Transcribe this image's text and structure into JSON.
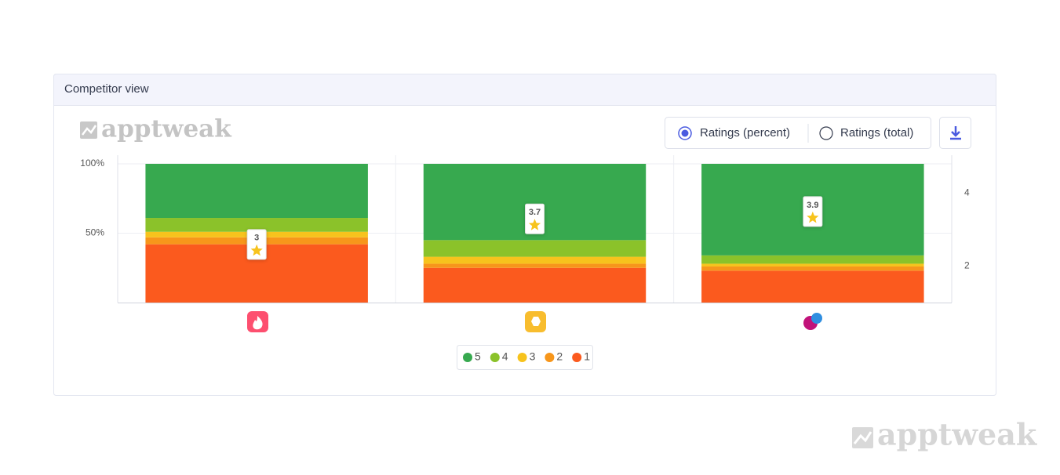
{
  "header": {
    "title": "Competitor view"
  },
  "logo": "apptweak",
  "controls": {
    "options": [
      "Ratings (percent)",
      "Ratings (total)"
    ],
    "selected": 0
  },
  "watermark": "apptweak",
  "chart_data": {
    "type": "stacked-bar",
    "categories": [
      null,
      null,
      null
    ],
    "series": [
      {
        "name": "5",
        "color": "#37a94f",
        "values": [
          39,
          55,
          66
        ]
      },
      {
        "name": "4",
        "color": "#8bc22a",
        "values": [
          10,
          12,
          6
        ]
      },
      {
        "name": "3",
        "color": "#f7c31d",
        "values": [
          4,
          5,
          2
        ]
      },
      {
        "name": "2",
        "color": "#f7961b",
        "values": [
          5,
          3,
          3
        ]
      },
      {
        "name": "1",
        "color": "#fb5a1e",
        "values": [
          42,
          25,
          23
        ]
      }
    ],
    "ratings": {
      "axis": "y2",
      "values": [
        3,
        3.7,
        3.9
      ]
    },
    "ylim": [
      0,
      100
    ],
    "yticks": [
      {
        "value": 50,
        "label": "50%"
      },
      {
        "value": 100,
        "label": "100%"
      }
    ],
    "y2lim": [
      1,
      4.8
    ],
    "y2ticks": [
      2,
      4
    ],
    "grid": true,
    "legend": "bottom"
  }
}
